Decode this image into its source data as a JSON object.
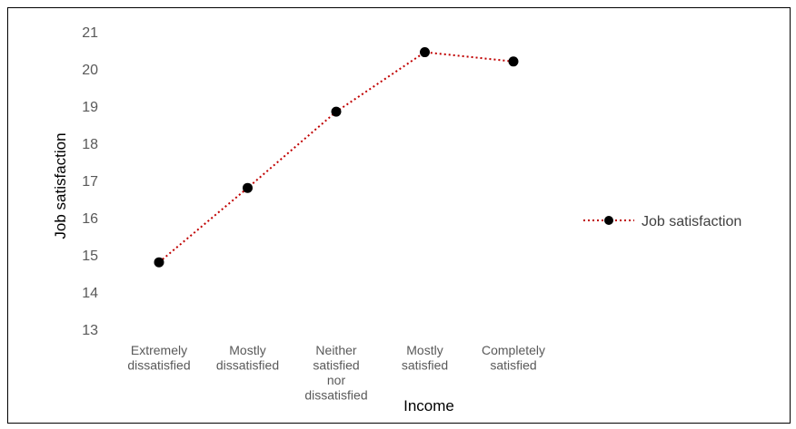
{
  "chart_data": {
    "type": "line",
    "title": "",
    "xlabel": "Income",
    "ylabel": "Job satisfaction",
    "categories": [
      [
        "Extremely",
        "dissatisfied"
      ],
      [
        "Mostly",
        "dissatisfied"
      ],
      [
        "Neither",
        "satisfied",
        "nor",
        "dissatisfied"
      ],
      [
        "Mostly",
        "satisfied"
      ],
      [
        "Completely",
        "satisfied"
      ]
    ],
    "series": [
      {
        "name": "Job satisfaction",
        "values": [
          14.8,
          16.8,
          18.85,
          20.45,
          20.2
        ]
      }
    ],
    "ylim": [
      13,
      21
    ],
    "yticks": [
      "13",
      "14",
      "15",
      "16",
      "17",
      "18",
      "19",
      "20",
      "21"
    ],
    "grid": false,
    "legend_position": "right",
    "line_color": "#C00000",
    "marker_color": "#000000",
    "line_style": "dotted"
  }
}
